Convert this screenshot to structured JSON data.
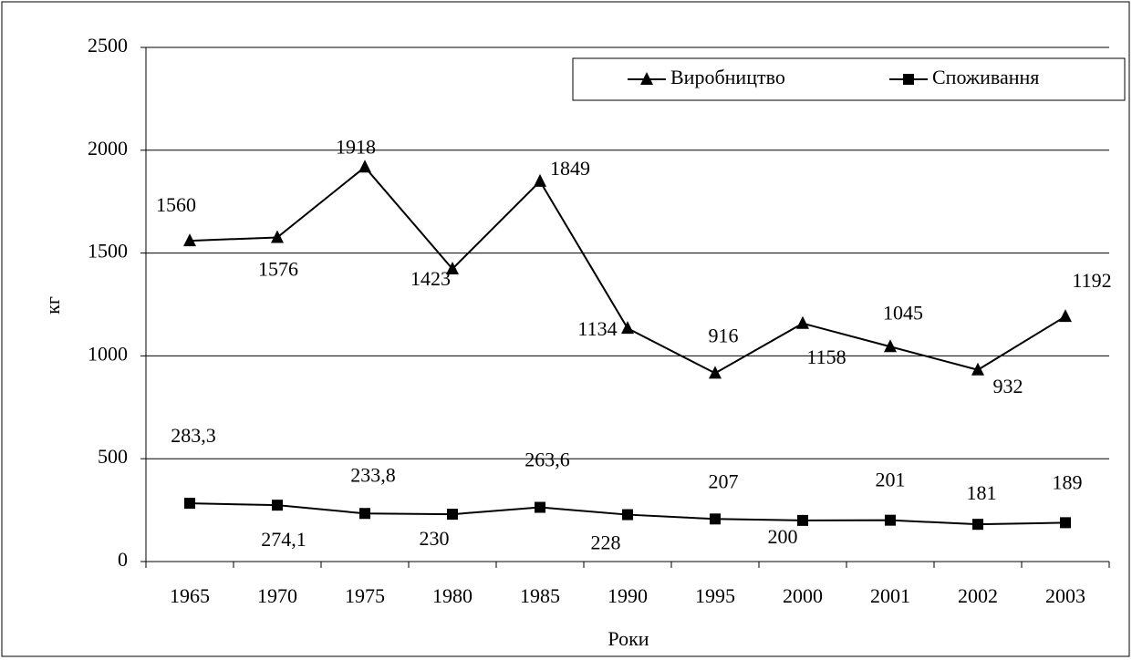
{
  "chart_data": {
    "type": "line",
    "ylabel": "кг",
    "xlabel": "Роки",
    "categories": [
      "1965",
      "1970",
      "1975",
      "1980",
      "1985",
      "1990",
      "1995",
      "2000",
      "2001",
      "2002",
      "2003"
    ],
    "series": [
      {
        "name": "Виробництво",
        "color": "#000000",
        "marker": "triangle",
        "values": [
          1560,
          1576,
          1918,
          1423,
          1849,
          1134,
          916,
          1158,
          1045,
          932,
          1192
        ]
      },
      {
        "name": "Споживання",
        "color": "#000000",
        "marker": "square",
        "values": [
          283.3,
          274.1,
          233.8,
          230,
          263.6,
          228,
          207,
          200,
          201,
          181,
          189
        ],
        "value_labels": [
          "283,3",
          "274,1",
          "233,8",
          "230",
          "263,6",
          "228",
          "207",
          "200",
          "201",
          "181",
          "189"
        ]
      }
    ],
    "ylim": [
      0,
      2500
    ],
    "yticks": [
      0,
      500,
      1000,
      1500,
      2000,
      2500
    ],
    "grid": true,
    "legend": "top-right"
  }
}
